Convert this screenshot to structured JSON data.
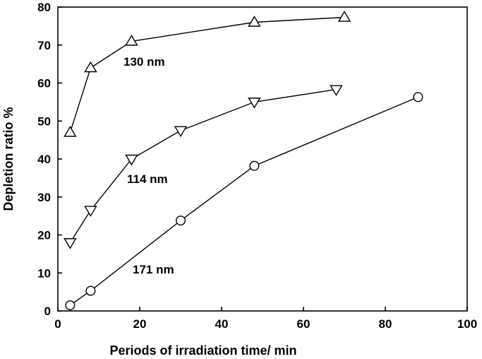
{
  "chart_data": {
    "type": "line",
    "title": "",
    "xlabel": "Periods of irradiation time/ min",
    "ylabel": "Depletion ratio %",
    "xlim": [
      0,
      100
    ],
    "ylim": [
      0,
      80
    ],
    "xticks": [
      0,
      20,
      40,
      60,
      80,
      100
    ],
    "yticks": [
      0,
      10,
      20,
      30,
      40,
      50,
      60,
      70,
      80
    ],
    "grid": false,
    "series": [
      {
        "name": "130 nm",
        "marker": "triangle-up",
        "x": [
          3,
          8,
          18,
          48,
          70
        ],
        "y": [
          47,
          64,
          71,
          76,
          77.3
        ]
      },
      {
        "name": "114 nm",
        "marker": "triangle-down",
        "x": [
          3,
          8,
          18,
          30,
          48,
          68
        ],
        "y": [
          18,
          26.5,
          40,
          47.5,
          55,
          58.3
        ]
      },
      {
        "name": "171 nm",
        "marker": "circle",
        "x": [
          3,
          8,
          30,
          48,
          88
        ],
        "y": [
          1.5,
          5.3,
          23.8,
          38.2,
          56.3
        ]
      }
    ]
  }
}
